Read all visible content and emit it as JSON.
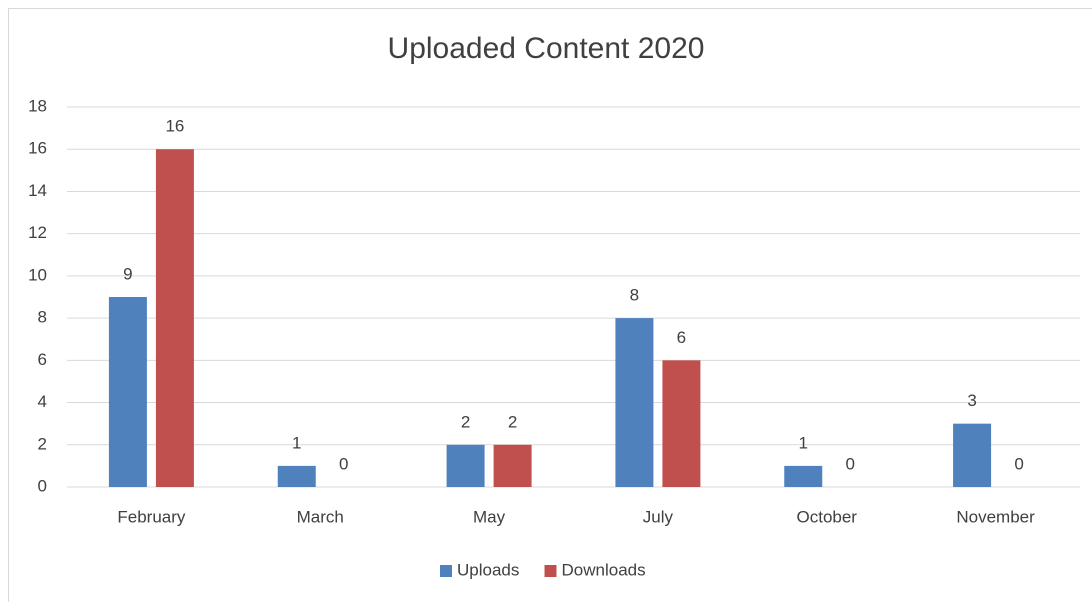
{
  "chart_data": {
    "type": "bar",
    "title": "Uploaded Content 2020",
    "categories": [
      "February",
      "March",
      "May",
      "July",
      "October",
      "November"
    ],
    "series": [
      {
        "name": "Uploads",
        "color": "#4f81bd",
        "values": [
          9,
          1,
          2,
          8,
          1,
          3
        ]
      },
      {
        "name": "Downloads",
        "color": "#c0504d",
        "values": [
          16,
          0,
          2,
          6,
          0,
          0
        ]
      }
    ],
    "ylim": [
      0,
      18
    ],
    "yticks": [
      0,
      2,
      4,
      6,
      8,
      10,
      12,
      14,
      16,
      18
    ],
    "grid": true,
    "legend": "bottom"
  }
}
